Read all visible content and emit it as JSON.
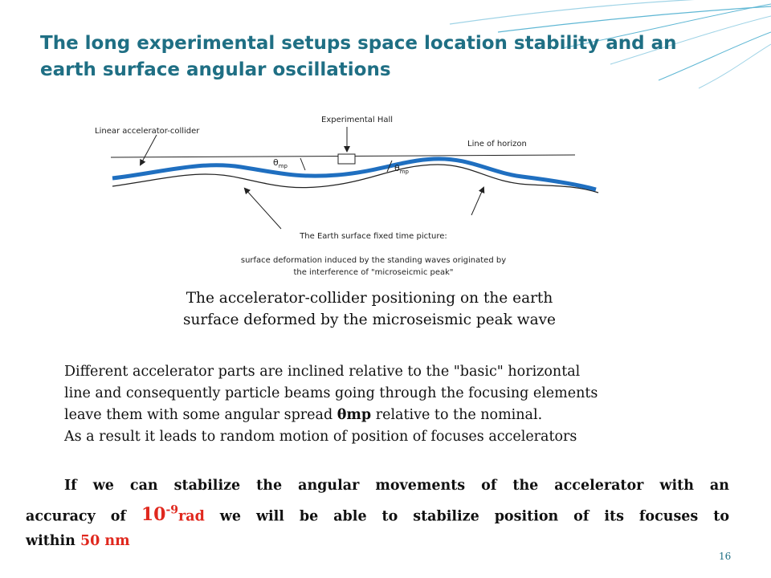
{
  "slide": {
    "title": "The long experimental setups space location stability and an earth surface angular oscillations",
    "page_number": "16"
  },
  "diagram": {
    "label_collider": "Linear accelerator-collider",
    "label_hall": "Experimental Hall",
    "label_horizon": "Line of  horizon",
    "theta_symbol": "θ",
    "theta_sub": "mp",
    "earth_line1": "The Earth surface fixed time picture:",
    "earth_line2": "surface deformation induced by the standing waves originated by",
    "earth_line3": "the interference of \"microseicmic peak\""
  },
  "caption": {
    "line1": "The accelerator-collider positioning on the earth",
    "line2": "surface deformed by the microseismic peak wave"
  },
  "paragraph": {
    "line1": "Different accelerator parts are inclined relative to the \"basic\" horizontal",
    "line2": "line and consequently particle beams going through the focusing elements",
    "line3_pre": "leave them with some angular spread ",
    "line3_bold": "θmp",
    "line3_post": " relative to the nominal.",
    "line4": "As a result it leads to random motion of  position of  focuses accelerators"
  },
  "conclusion": {
    "line1": "If we can stabilize the angular movements of the accelerator with an",
    "line2_pre": "accuracy of ",
    "line2_base": "10",
    "line2_exp": "-9",
    "line2_unit": "rad",
    "line2_post": " we will be able to stabilize position of its focuses to",
    "line3_pre": "within ",
    "line3_value": "50 nm"
  },
  "colors": {
    "title": "#1f6f84",
    "wave": "#1f6fc0",
    "accent_red": "#e0281e",
    "decor_lines": "#5fb7d4"
  }
}
